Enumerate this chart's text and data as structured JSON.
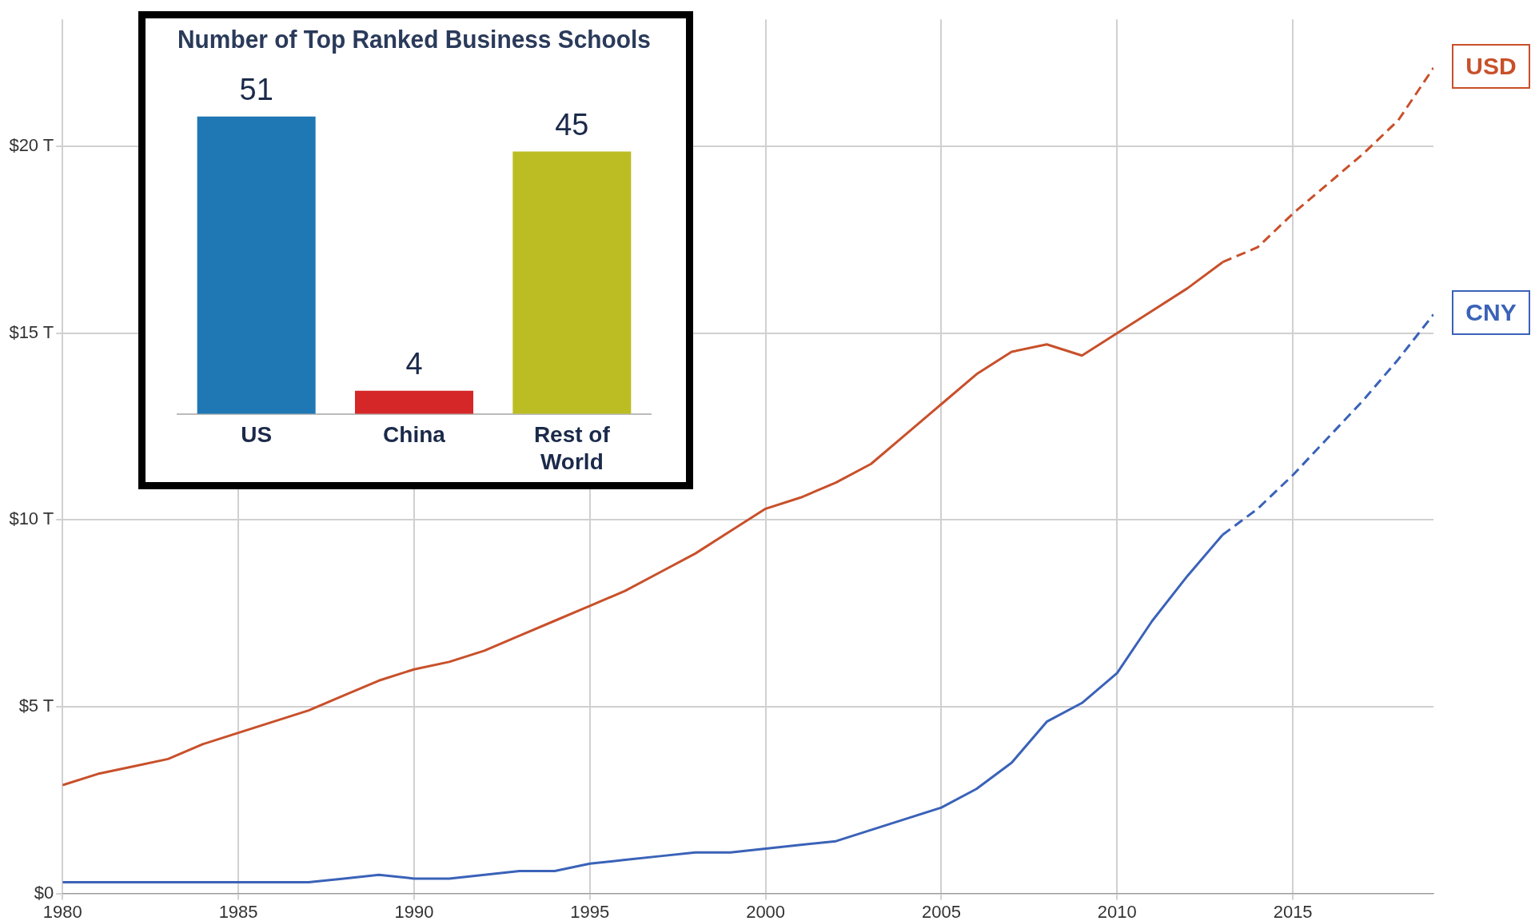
{
  "chart_data": [
    {
      "type": "line",
      "x": [
        1980,
        1981,
        1982,
        1983,
        1984,
        1985,
        1986,
        1987,
        1988,
        1989,
        1990,
        1991,
        1992,
        1993,
        1994,
        1995,
        1996,
        1997,
        1998,
        1999,
        2000,
        2001,
        2002,
        2003,
        2004,
        2005,
        2006,
        2007,
        2008,
        2009,
        2010,
        2011,
        2012,
        2013
      ],
      "series": [
        {
          "name": "USD",
          "color": "#c8502a",
          "values": [
            2.9,
            3.2,
            3.4,
            3.6,
            4.0,
            4.3,
            4.6,
            4.9,
            5.3,
            5.7,
            6.0,
            6.2,
            6.5,
            6.9,
            7.3,
            7.7,
            8.1,
            8.6,
            9.1,
            9.7,
            10.3,
            10.6,
            11.0,
            11.5,
            12.3,
            13.1,
            13.9,
            14.5,
            14.7,
            14.4,
            15.0,
            15.6,
            16.2,
            16.9
          ]
        },
        {
          "color": "#c8502a",
          "line_style": "dashed",
          "x": [
            2013,
            2014,
            2015,
            2016,
            2017,
            2018,
            2019
          ],
          "values": [
            16.9,
            17.3,
            18.2,
            19.0,
            19.8,
            20.7,
            22.1
          ]
        },
        {
          "name": "CNY",
          "color": "#3a62b8",
          "values": [
            0.3,
            0.3,
            0.3,
            0.3,
            0.3,
            0.3,
            0.3,
            0.3,
            0.4,
            0.5,
            0.4,
            0.4,
            0.5,
            0.6,
            0.6,
            0.8,
            0.9,
            1.0,
            1.1,
            1.1,
            1.2,
            1.3,
            1.4,
            1.7,
            2.0,
            2.3,
            2.8,
            3.5,
            4.6,
            5.1,
            5.9,
            7.3,
            8.5,
            9.6
          ]
        },
        {
          "color": "#3a62b8",
          "line_style": "dashed",
          "x": [
            2013,
            2014,
            2015,
            2016,
            2017,
            2018,
            2019
          ],
          "values": [
            9.6,
            10.3,
            11.2,
            12.2,
            13.2,
            14.3,
            15.5
          ]
        }
      ],
      "xlim": [
        1980,
        2019
      ],
      "xticks": [
        1980,
        1985,
        1990,
        1995,
        2000,
        2005,
        2010,
        2015
      ],
      "ylim": [
        0,
        23.4
      ],
      "yticks": [
        {
          "value": 0,
          "label": "$0"
        },
        {
          "value": 5,
          "label": "$5 T"
        },
        {
          "value": 10,
          "label": "$10 T"
        },
        {
          "value": 15,
          "label": "$15 T"
        },
        {
          "value": 20,
          "label": "$20 T"
        }
      ],
      "grid": true
    },
    {
      "type": "bar",
      "title": "Number of Top Ranked Business Schools",
      "categories": [
        "US",
        "China",
        "Rest of World"
      ],
      "values": [
        51,
        4,
        45
      ],
      "colors": [
        "#1f77b4",
        "#d62728",
        "#bcbd22"
      ],
      "data_labels": true
    }
  ]
}
